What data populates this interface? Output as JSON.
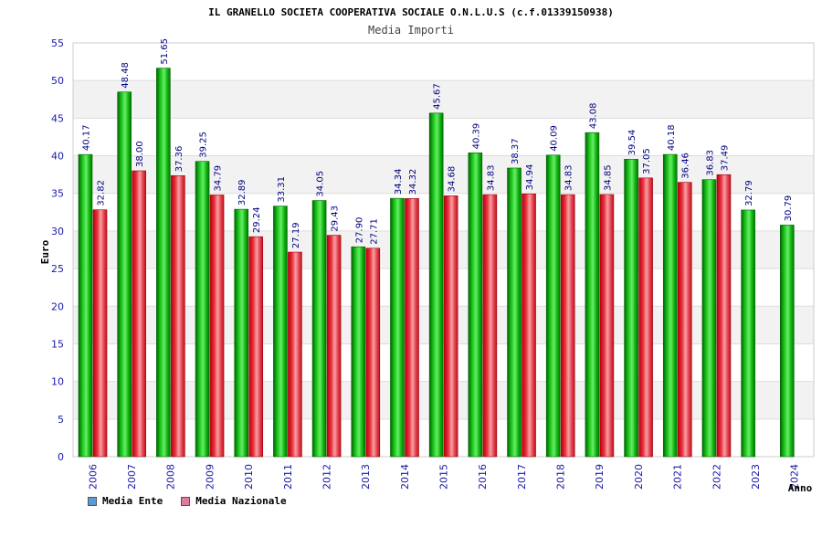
{
  "chart_data": {
    "type": "bar",
    "title": "IL GRANELLO SOCIETA COOPERATIVA SOCIALE O.N.L.U.S (c.f.01339150938)",
    "subtitle": "Media Importi",
    "ylabel": "Euro",
    "xlabel": "Anno",
    "ylim": [
      0,
      55
    ],
    "yticks": [
      0,
      5,
      10,
      15,
      20,
      25,
      30,
      35,
      40,
      45,
      50,
      55
    ],
    "grid": true,
    "legend_position": "bottom-left",
    "categories": [
      "2006",
      "2007",
      "2008",
      "2009",
      "2010",
      "2011",
      "2012",
      "2013",
      "2014",
      "2015",
      "2016",
      "2017",
      "2018",
      "2019",
      "2020",
      "2021",
      "2022",
      "2023",
      "2024"
    ],
    "series": [
      {
        "name": "Media Ente",
        "color": "#00b400",
        "legend_color": "#5b9bd5",
        "values": [
          40.17,
          48.48,
          51.65,
          39.25,
          32.89,
          33.31,
          34.05,
          27.9,
          34.34,
          45.67,
          40.39,
          38.37,
          40.09,
          43.08,
          39.54,
          40.18,
          36.83,
          32.79,
          30.79
        ],
        "labels": [
          "40.17",
          "48.48",
          "51.65",
          "39.25",
          "32.89",
          "33.31",
          "34.05",
          "27.90",
          "34.34",
          "45.67",
          "40.39",
          "38.37",
          "40.09",
          "43.08",
          "39.54",
          "40.18",
          "36.83",
          "32.79",
          "30.79"
        ]
      },
      {
        "name": "Media Nazionale",
        "color": "#e8303a",
        "legend_color": "#e07aa0",
        "values": [
          32.82,
          38.0,
          37.36,
          34.79,
          29.24,
          27.19,
          29.43,
          27.71,
          34.32,
          34.68,
          34.83,
          34.94,
          34.83,
          34.85,
          37.05,
          36.46,
          37.49,
          null,
          null
        ],
        "labels": [
          "32.82",
          "38.00",
          "37.36",
          "34.79",
          "29.24",
          "27.19",
          "29.43",
          "27.71",
          "34.32",
          "34.68",
          "34.83",
          "34.94",
          "34.83",
          "34.85",
          "37.05",
          "36.46",
          "37.49",
          null,
          null
        ]
      }
    ]
  }
}
